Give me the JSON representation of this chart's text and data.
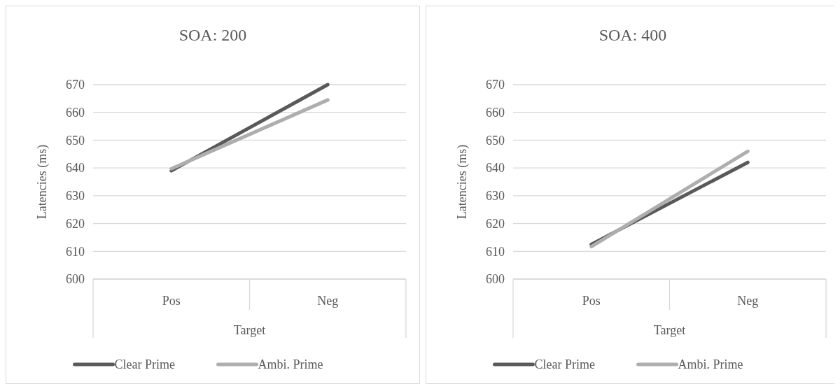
{
  "chart_data": [
    {
      "type": "line",
      "title": "SOA: 200",
      "xlabel": "Target",
      "ylabel": "Latencies (ms)",
      "categories": [
        "Pos",
        "Neg"
      ],
      "ylim": [
        600,
        670
      ],
      "yticks": [
        600,
        610,
        620,
        630,
        640,
        650,
        660,
        670
      ],
      "grid": "y",
      "legend": "bottom",
      "marker": "none",
      "line_style": "solid",
      "series": [
        {
          "name": "Clear Prime",
          "color": "#595959",
          "values": [
            639,
            670
          ]
        },
        {
          "name": "Ambi. Prime",
          "color": "#aeaeae",
          "values": [
            639.7,
            664.5
          ]
        }
      ]
    },
    {
      "type": "line",
      "title": "SOA: 400",
      "xlabel": "Target",
      "ylabel": "Latencies (ms)",
      "categories": [
        "Pos",
        "Neg"
      ],
      "ylim": [
        600,
        670
      ],
      "yticks": [
        600,
        610,
        620,
        630,
        640,
        650,
        660,
        670
      ],
      "grid": "y",
      "legend": "bottom",
      "marker": "none",
      "line_style": "solid",
      "series": [
        {
          "name": "Clear Prime",
          "color": "#595959",
          "values": [
            612.5,
            642
          ]
        },
        {
          "name": "Ambi. Prime",
          "color": "#aeaeae",
          "values": [
            611.7,
            646
          ]
        }
      ]
    }
  ]
}
